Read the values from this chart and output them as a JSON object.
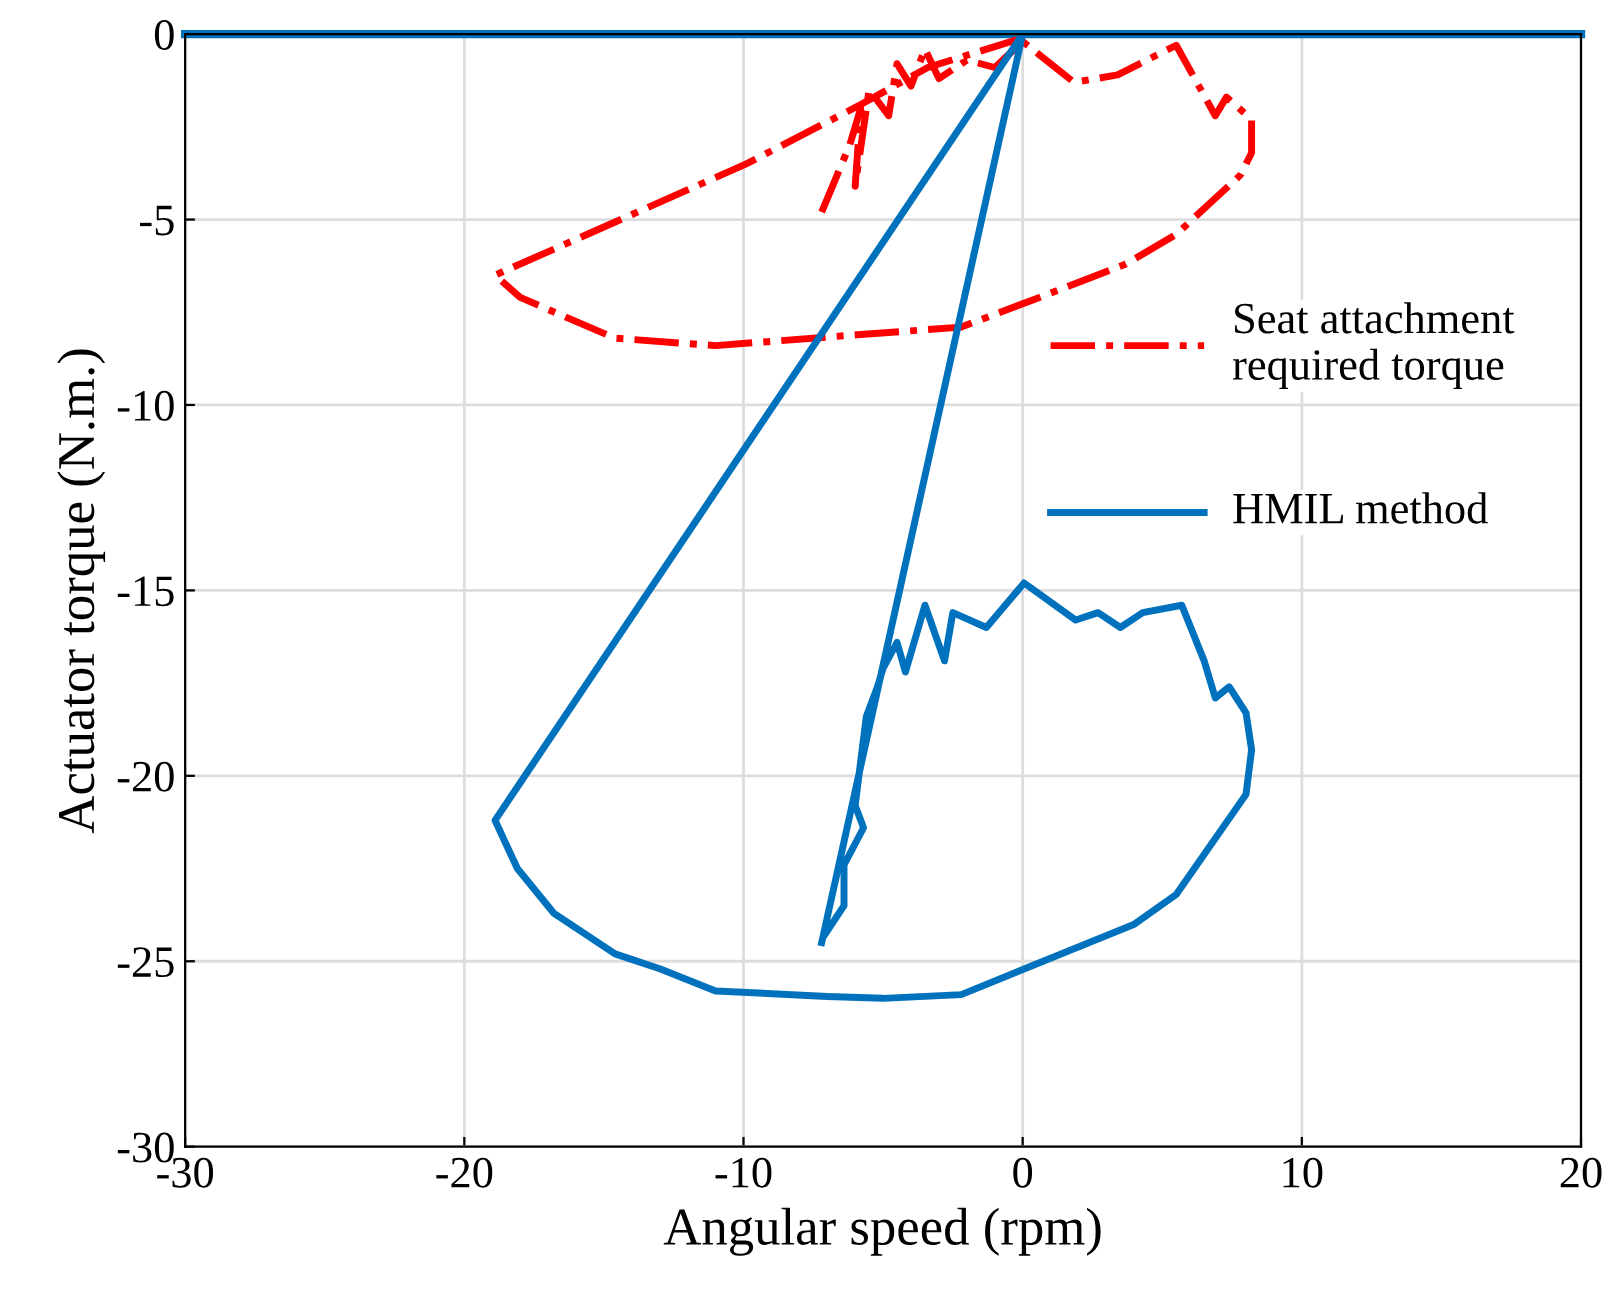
{
  "chart_data": {
    "type": "line",
    "xlabel": "Angular speed (rpm)",
    "ylabel": "Actuator torque (N.m.)",
    "xlim": [
      -30,
      20
    ],
    "xticks": [
      -30,
      -20,
      -10,
      0,
      10,
      20
    ],
    "ylim": [
      -30,
      0
    ],
    "yticks": [
      -30,
      -25,
      -20,
      -15,
      -10,
      -5,
      0
    ],
    "grid": true,
    "legend": "right",
    "ref_lines": [
      {
        "axis": "y",
        "value": 0,
        "label": null,
        "color": "#0072bd",
        "line_style": "solid"
      }
    ],
    "series": [
      {
        "name": "Seat attachment required torque",
        "color": "#ff0000",
        "line_style": "dashdot",
        "x": [
          -7.2,
          -6.2,
          -5.8,
          -6.0,
          -5.5,
          -4.8,
          -4.5,
          -4.0,
          -3.5,
          -3.0,
          -2.0,
          -1.0,
          0.0,
          1.84,
          3.4,
          5.5,
          6.9,
          7.3,
          8.2,
          8.2,
          7.8,
          5.5,
          3.7,
          0.6,
          -2.2,
          -5.8,
          -11.0,
          -14.6,
          -18.0,
          -18.9,
          -9.9,
          -5.8,
          -3.4,
          0.0
        ],
        "values": [
          -4.8,
          -3.0,
          -2.0,
          -4.1,
          -1.5,
          -2.2,
          -0.8,
          -1.4,
          -0.4,
          -1.2,
          -0.7,
          -0.9,
          -0.2,
          -1.3,
          -1.1,
          -0.3,
          -2.2,
          -1.7,
          -2.3,
          -3.2,
          -3.8,
          -5.4,
          -6.2,
          -7.1,
          -7.9,
          -8.1,
          -8.4,
          -8.2,
          -7.1,
          -6.5,
          -3.5,
          -1.9,
          -0.9,
          -0.1
        ]
      },
      {
        "name": "HMIL method",
        "color": "#0072bd",
        "line_style": "solid",
        "x": [
          -7.2,
          0.0,
          -18.9,
          -18.1,
          -16.8,
          -14.6,
          -13.0,
          -11.0,
          -7.0,
          -5.0,
          -2.2,
          4.0,
          5.5,
          8.0,
          8.2,
          8.0,
          7.4,
          6.9,
          6.5,
          5.7,
          4.3,
          3.5,
          2.7,
          1.9,
          0.05,
          -1.3,
          -2.5,
          -2.8,
          -3.5,
          -4.2,
          -4.5,
          -5.0,
          -5.2,
          -5.6,
          -5.8,
          -6.0,
          -5.7,
          -6.4,
          -6.4,
          -7.1
        ],
        "values": [
          -24.5,
          0.0,
          -21.2,
          -22.5,
          -23.7,
          -24.8,
          -25.2,
          -25.8,
          -25.95,
          -26.0,
          -25.9,
          -24.0,
          -23.2,
          -20.5,
          -19.3,
          -18.3,
          -17.6,
          -17.9,
          -16.9,
          -15.4,
          -15.6,
          -16.0,
          -15.6,
          -15.8,
          -14.8,
          -16.0,
          -15.6,
          -16.9,
          -15.4,
          -17.2,
          -16.4,
          -17.1,
          -17.6,
          -18.4,
          -19.6,
          -20.8,
          -21.4,
          -22.4,
          -23.5,
          -24.3
        ]
      }
    ]
  }
}
